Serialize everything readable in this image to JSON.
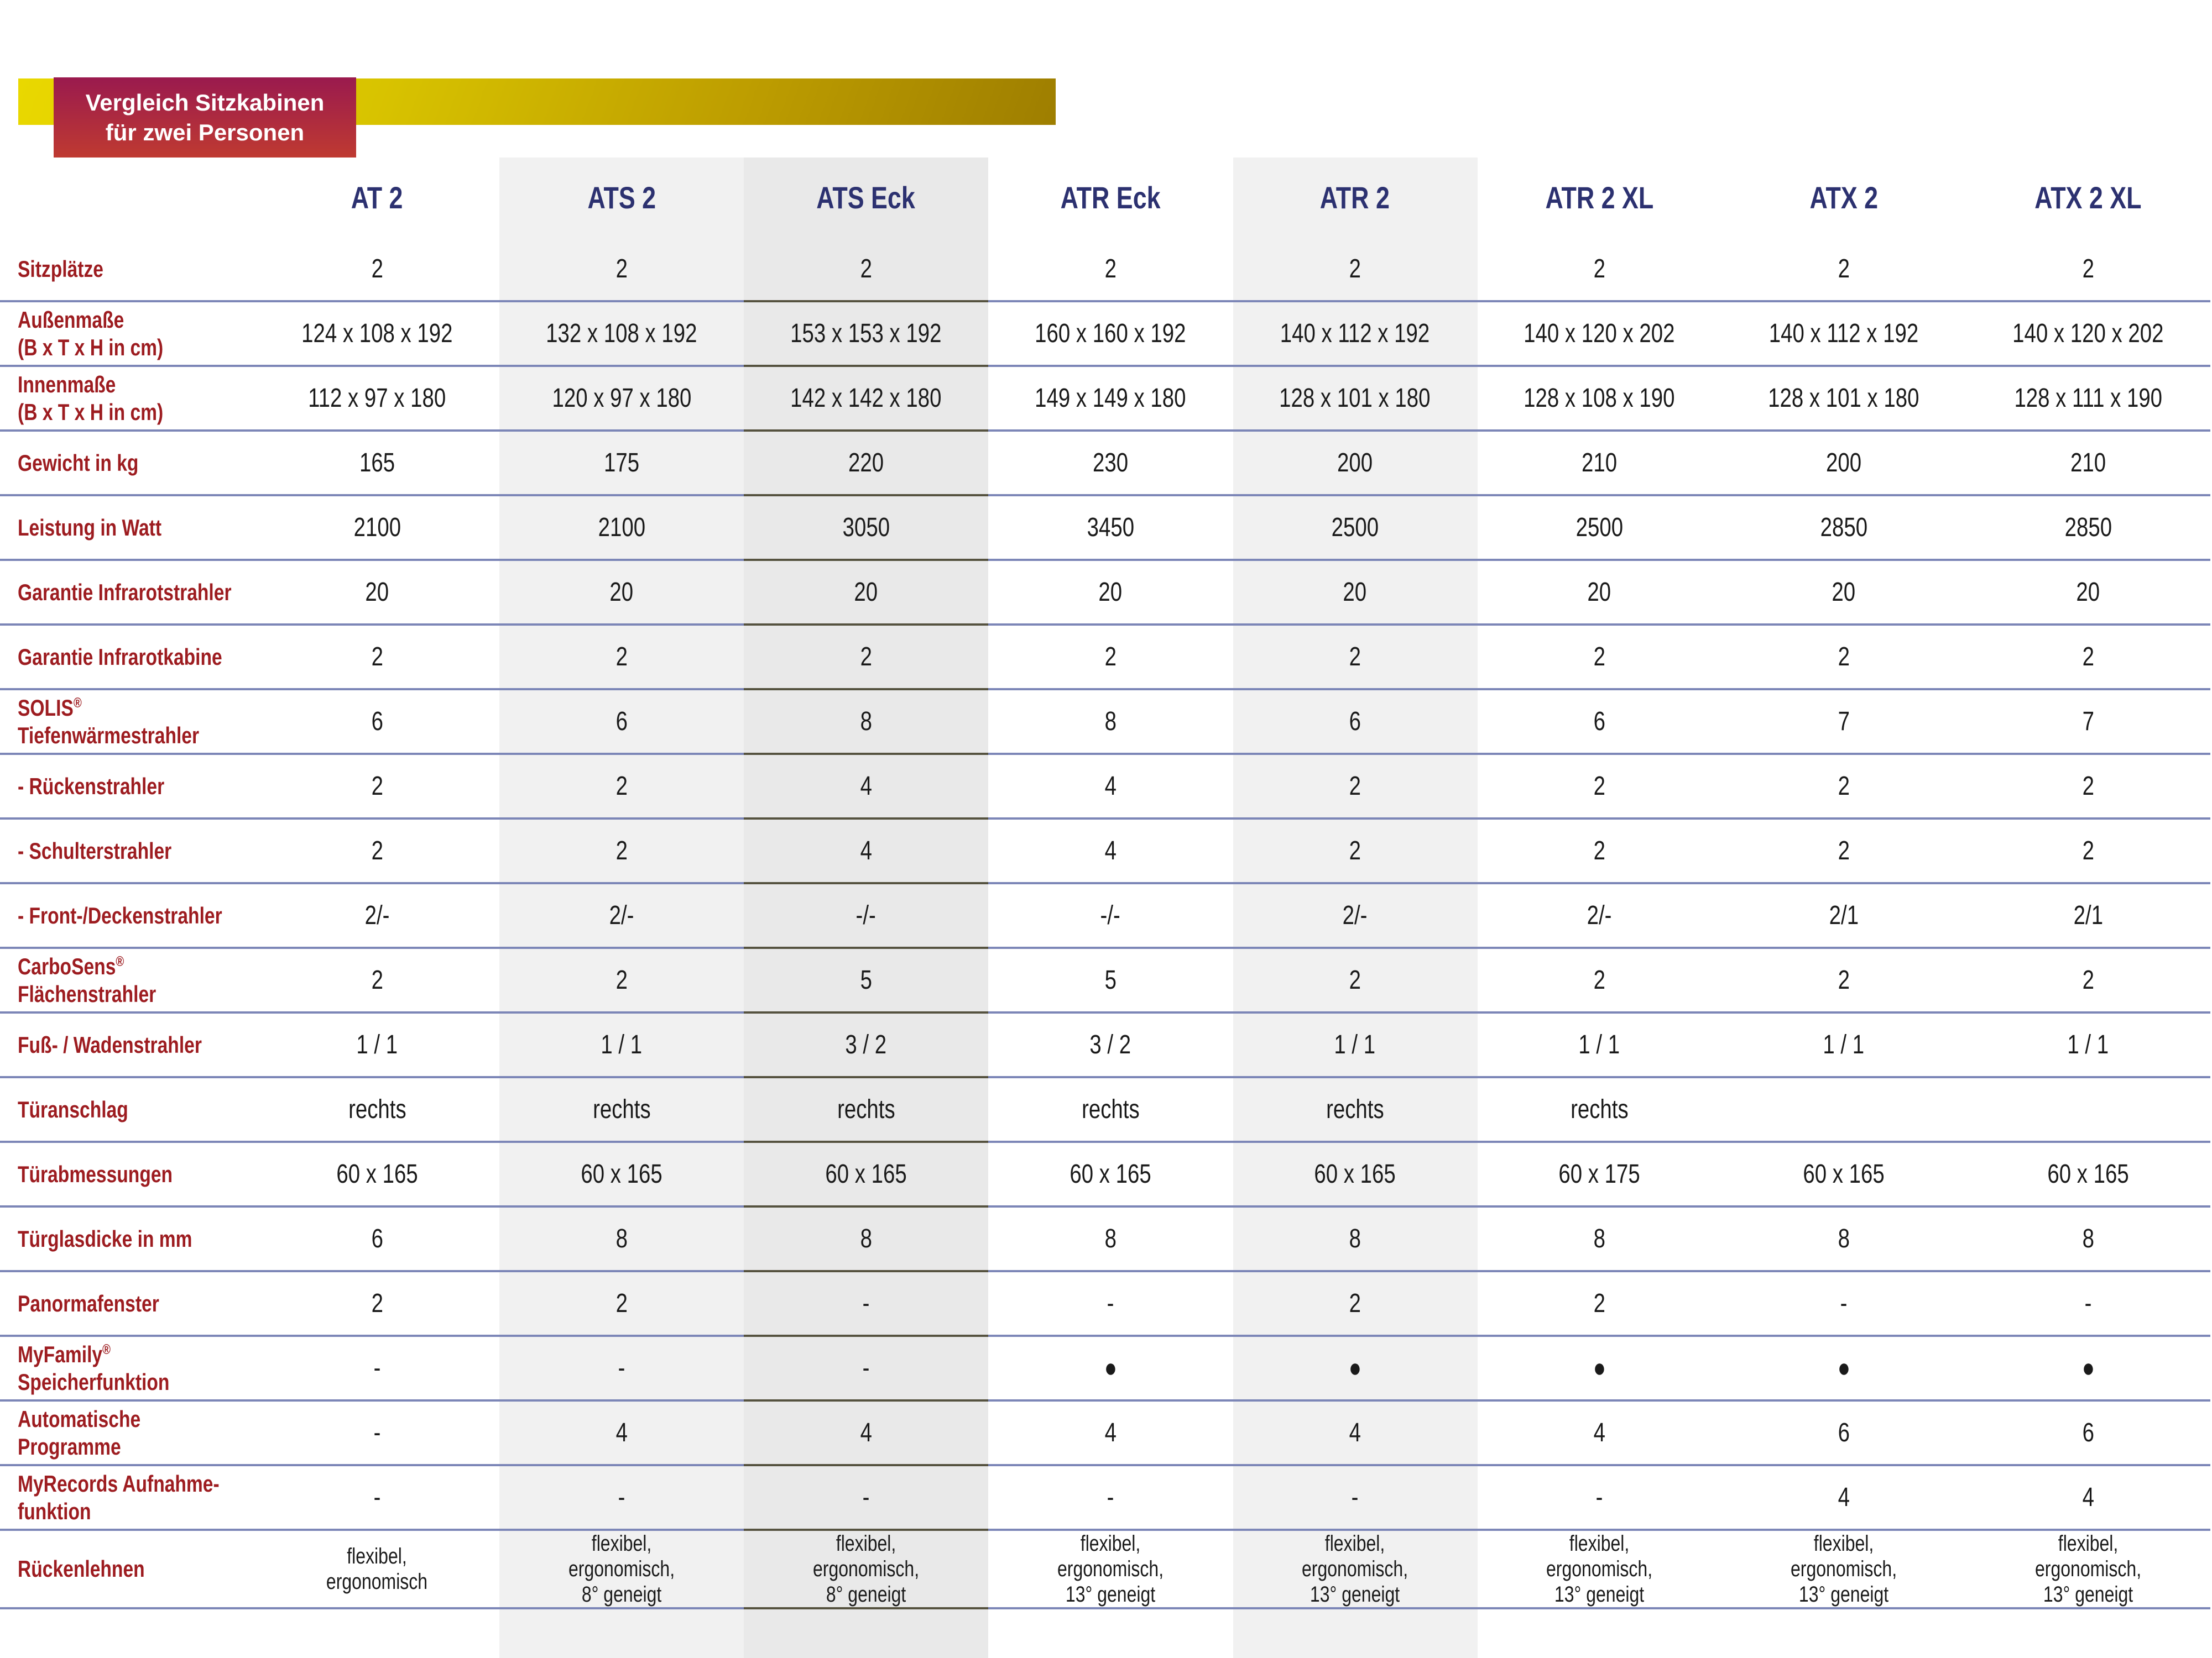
{
  "title_badge": {
    "text": "Vergleich Sitzkabinen\nfür zwei Personen"
  },
  "colors": {
    "label_red": "#9d1c20",
    "header_navy": "#2c3170",
    "data_text": "#1a1a1a",
    "separator_blue": "#7c86b7",
    "separator_dark": "#55523f",
    "stripe_light": "#f1f1f1",
    "stripe_mid": "#e9e9e9",
    "yellow_from": "#e9d800",
    "yellow_to": "#9e7e00",
    "badge_from": "#9a1a4e",
    "badge_to": "#bf3a31"
  },
  "table": {
    "columns": [
      "AT 2",
      "ATS 2",
      "ATS Eck",
      "ATR Eck",
      "ATR 2",
      "ATR 2 XL",
      "ATX 2",
      "ATX 2 XL"
    ],
    "highlighted_columns": [
      "ATS 2",
      "ATS Eck",
      "ATR 2"
    ],
    "rows": [
      {
        "label": "Sitzplätze",
        "values": [
          "2",
          "2",
          "2",
          "2",
          "2",
          "2",
          "2",
          "2"
        ]
      },
      {
        "label": "Außenmaße\n(B x T x H in cm)",
        "values": [
          "124 x 108 x 192",
          "132 x 108 x 192",
          "153 x 153 x 192",
          "160 x 160 x 192",
          "140 x 112 x 192",
          "140 x 120 x 202",
          "140 x 112 x 192",
          "140 x 120 x 202"
        ]
      },
      {
        "label": "Innenmaße\n(B x T x H in cm)",
        "values": [
          "112 x 97 x 180",
          "120 x 97 x 180",
          "142 x 142 x 180",
          "149 x 149 x 180",
          "128 x 101 x 180",
          "128 x 108 x 190",
          "128 x 101 x 180",
          "128 x 111 x 190"
        ]
      },
      {
        "label": "Gewicht in kg",
        "values": [
          "165",
          "175",
          "220",
          "230",
          "200",
          "210",
          "200",
          "210"
        ]
      },
      {
        "label": "Leistung in Watt",
        "values": [
          "2100",
          "2100",
          "3050",
          "3450",
          "2500",
          "2500",
          "2850",
          "2850"
        ]
      },
      {
        "label": "Garantie Infrarotstrahler",
        "values": [
          "20",
          "20",
          "20",
          "20",
          "20",
          "20",
          "20",
          "20"
        ]
      },
      {
        "label": "Garantie Infrarotkabine",
        "values": [
          "2",
          "2",
          "2",
          "2",
          "2",
          "2",
          "2",
          "2"
        ]
      },
      {
        "label": "SOLIS®\nTiefenwärmestrahler",
        "values": [
          "6",
          "6",
          "8",
          "8",
          "6",
          "6",
          "7",
          "7"
        ]
      },
      {
        "label": "- Rückenstrahler",
        "values": [
          "2",
          "2",
          "4",
          "4",
          "2",
          "2",
          "2",
          "2"
        ]
      },
      {
        "label": "- Schulterstrahler",
        "values": [
          "2",
          "2",
          "4",
          "4",
          "2",
          "2",
          "2",
          "2"
        ]
      },
      {
        "label": "- Front-/Deckenstrahler",
        "values": [
          "2/-",
          "2/-",
          "-/-",
          "-/-",
          "2/-",
          "2/-",
          "2/1",
          "2/1"
        ]
      },
      {
        "label": "CarboSens®\nFlächenstrahler",
        "values": [
          "2",
          "2",
          "5",
          "5",
          "2",
          "2",
          "2",
          "2"
        ]
      },
      {
        "label": "Fuß- / Wadenstrahler",
        "values": [
          "1 / 1",
          "1 / 1",
          "3 / 2",
          "3 / 2",
          "1 / 1",
          "1 / 1",
          "1 / 1",
          "1 / 1"
        ]
      },
      {
        "label": "Türanschlag",
        "values": [
          "rechts",
          "rechts",
          "rechts",
          "rechts",
          "rechts",
          "rechts",
          "",
          ""
        ]
      },
      {
        "label": "Türabmessungen",
        "values": [
          "60 x 165",
          "60 x 165",
          "60 x 165",
          "60 x 165",
          "60 x 165",
          "60 x 175",
          "60 x 165",
          "60 x 165"
        ]
      },
      {
        "label": "Türglasdicke in mm",
        "values": [
          "6",
          "8",
          "8",
          "8",
          "8",
          "8",
          "8",
          "8"
        ]
      },
      {
        "label": "Panormafenster",
        "values": [
          "2",
          "2",
          "-",
          "-",
          "2",
          "2",
          "-",
          "-"
        ]
      },
      {
        "label": "MyFamily®\nSpeicherfunktion",
        "values": [
          "-",
          "-",
          "-",
          "●",
          "●",
          "●",
          "●",
          "●"
        ]
      },
      {
        "label": "Automatische\nProgramme",
        "values": [
          "-",
          "4",
          "4",
          "4",
          "4",
          "4",
          "6",
          "6"
        ]
      },
      {
        "label": "MyRecords Aufnahme-\nfunktion",
        "values": [
          "-",
          "-",
          "-",
          "-",
          "-",
          "-",
          "4",
          "4"
        ]
      },
      {
        "label": "Rückenlehnen",
        "values": [
          "flexibel,\nergonomisch",
          "flexibel,\nergonomisch,\n8° geneigt",
          "flexibel,\nergonomisch,\n8° geneigt",
          "flexibel,\nergonomisch,\n13° geneigt",
          "flexibel,\nergonomisch,\n13° geneigt",
          "flexibel,\nergonomisch,\n13° geneigt",
          "flexibel,\nergonomisch,\n13° geneigt",
          "flexibel,\nergonomisch,\n13° geneigt"
        ]
      }
    ]
  }
}
